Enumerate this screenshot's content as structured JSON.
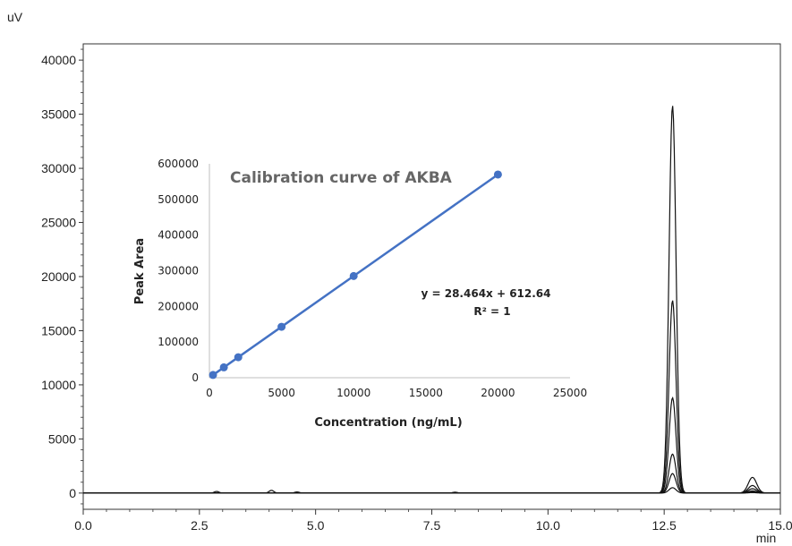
{
  "chart_data": [
    {
      "type": "line",
      "ylabel": "uV",
      "xlabel": "min",
      "xlim": [
        0,
        15
      ],
      "ylim": [
        -1500,
        41500
      ],
      "x_ticks": [
        0.0,
        2.5,
        5.0,
        7.5,
        10.0,
        12.5,
        15.0
      ],
      "x_tick_labels": [
        "0.0",
        "2.5",
        "5.0",
        "7.5",
        "10.0",
        "12.5",
        "15.0"
      ],
      "y_ticks": [
        0,
        5000,
        10000,
        15000,
        20000,
        25000,
        30000,
        35000,
        40000
      ],
      "y_tick_labels": [
        "0",
        "5000",
        "10000",
        "15000",
        "20000",
        "25000",
        "30000",
        "35000",
        "40000"
      ],
      "baseline_bumps": [
        {
          "x": 2.87,
          "y": 150
        },
        {
          "x": 4.05,
          "y": 250
        },
        {
          "x": 4.6,
          "y": 100
        },
        {
          "x": 8.0,
          "y": 80
        }
      ],
      "series": [
        {
          "peak_x": 12.68,
          "peak_height": 35800,
          "second_peak_x": 14.4,
          "second_peak_height": 1450
        },
        {
          "peak_x": 12.68,
          "peak_height": 17800,
          "second_peak_x": 14.4,
          "second_peak_height": 700
        },
        {
          "peak_x": 12.68,
          "peak_height": 8800,
          "second_peak_x": 14.4,
          "second_peak_height": 400
        },
        {
          "peak_x": 12.68,
          "peak_height": 3600,
          "second_peak_x": 14.4,
          "second_peak_height": 200
        },
        {
          "peak_x": 12.68,
          "peak_height": 1800,
          "second_peak_x": 14.4,
          "second_peak_height": 100
        },
        {
          "peak_x": 12.68,
          "peak_height": 500,
          "second_peak_x": 14.4,
          "second_peak_height": 40
        }
      ],
      "line_color": "#111111"
    },
    {
      "type": "scatter",
      "title": "Calibration curve of AKBA",
      "xlabel": "Concentration (ng/mL)",
      "ylabel": "Peak Area",
      "xlim": [
        0,
        25000
      ],
      "ylim": [
        0,
        600000
      ],
      "x_ticks": [
        0,
        5000,
        10000,
        15000,
        20000,
        25000
      ],
      "y_ticks": [
        0,
        100000,
        200000,
        300000,
        400000,
        500000,
        600000
      ],
      "x": [
        250,
        1000,
        2000,
        5000,
        10000,
        20000
      ],
      "y": [
        7729,
        29077,
        57541,
        142933,
        285253,
        569893
      ],
      "equation": "y = 28.464x + 612.64",
      "r_squared": "R² = 1",
      "color": "#4472C4"
    }
  ]
}
